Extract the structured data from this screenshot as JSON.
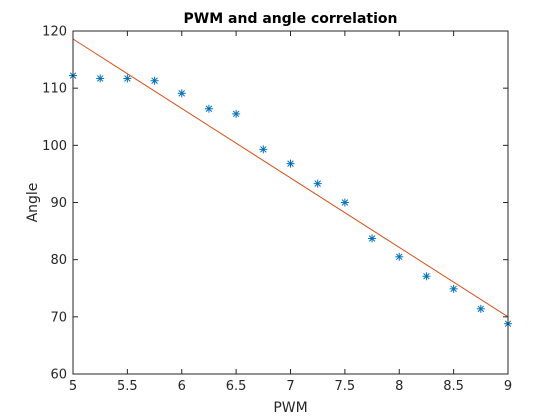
{
  "chart_data": {
    "type": "scatter",
    "title": "PWM and angle correlation",
    "xlabel": "PWM",
    "ylabel": "Angle",
    "xlim": [
      5,
      9
    ],
    "ylim": [
      60,
      120
    ],
    "xticks": [
      5,
      5.5,
      6,
      6.5,
      7,
      7.5,
      8,
      8.5,
      9
    ],
    "xtick_labels": [
      "5",
      "5.5",
      "6",
      "6.5",
      "7",
      "7.5",
      "8",
      "8.5",
      "9"
    ],
    "yticks": [
      60,
      70,
      80,
      90,
      100,
      110,
      120
    ],
    "ytick_labels": [
      "60",
      "70",
      "80",
      "90",
      "100",
      "110",
      "120"
    ],
    "grid": false,
    "series": [
      {
        "kind": "scatter",
        "marker": "asterisk",
        "color": "#0072BD",
        "x": [
          5,
          5.25,
          5.5,
          5.75,
          6,
          6.25,
          6.5,
          6.75,
          7,
          7.25,
          7.5,
          7.75,
          8,
          8.25,
          8.5,
          8.75,
          9
        ],
        "y": [
          112.2,
          111.7,
          111.7,
          111.3,
          109.1,
          106.4,
          105.5,
          99.3,
          96.8,
          93.3,
          90.0,
          83.7,
          80.5,
          77.1,
          74.9,
          71.4,
          68.8
        ]
      },
      {
        "kind": "line",
        "color": "#D95319",
        "x": [
          5,
          9
        ],
        "y": [
          118.6,
          70.0
        ]
      }
    ]
  }
}
